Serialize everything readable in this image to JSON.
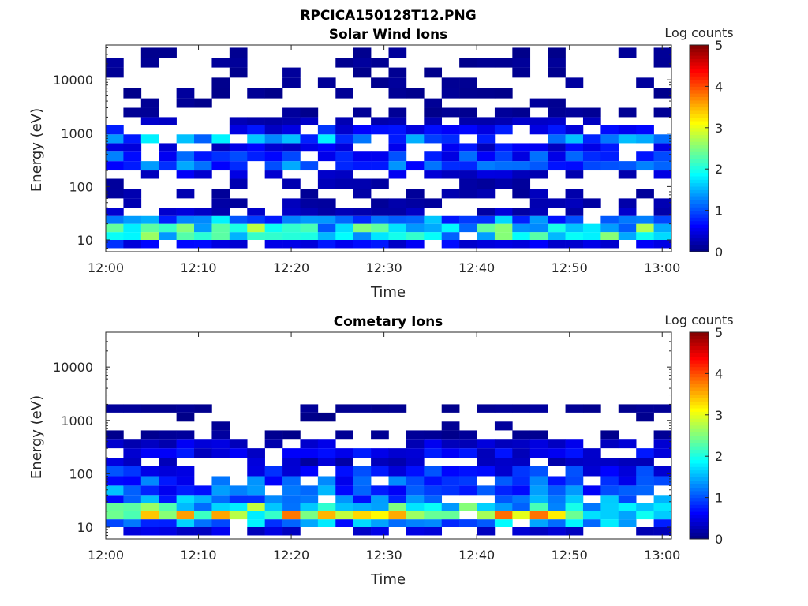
{
  "figure_title": "RPCICA150128T12.PNG",
  "colors": {
    "colormap": [
      "#00007f",
      "#0000ff",
      "#007fff",
      "#00ffff",
      "#7fff7f",
      "#ffff00",
      "#ff7f00",
      "#ff0000",
      "#7f0000"
    ],
    "axis": "#262626",
    "background": "#ffffff"
  },
  "chart_data": [
    {
      "type": "heatmap",
      "title": "Solar Wind Ions",
      "xlabel": "Time",
      "ylabel": "Energy (eV)",
      "x_ticks": [
        "12:00",
        "12:10",
        "12:20",
        "12:30",
        "12:40",
        "12:50",
        "13:00"
      ],
      "x_range_minutes": [
        0,
        61
      ],
      "y_scale": "log",
      "y_range": [
        6,
        45000
      ],
      "y_ticks": [
        {
          "value": 10,
          "label": "10"
        },
        {
          "value": 100,
          "label": "100"
        },
        {
          "value": 1000,
          "label": "1000"
        },
        {
          "value": 10000,
          "label": "10000"
        }
      ],
      "colorbar": {
        "label": "Log counts",
        "range": [
          0,
          5
        ],
        "ticks": [
          "0",
          "1",
          "2",
          "3",
          "4",
          "5"
        ]
      },
      "time_columns": 32,
      "energy_bands": [
        {
          "e_low": 7,
          "e_high": 10,
          "value": 0.6,
          "coverage": 0.8
        },
        {
          "e_low": 10,
          "e_high": 14,
          "value": 1.7,
          "coverage": 0.95
        },
        {
          "e_low": 14,
          "e_high": 20,
          "value": 1.9,
          "coverage": 0.95
        },
        {
          "e_low": 20,
          "e_high": 28,
          "value": 1.2,
          "coverage": 0.95
        },
        {
          "e_low": 28,
          "e_high": 40,
          "value": 0.3,
          "coverage": 0.55
        },
        {
          "e_low": 40,
          "e_high": 60,
          "value": 0.2,
          "coverage": 0.4
        },
        {
          "e_low": 60,
          "e_high": 90,
          "value": 0.2,
          "coverage": 0.3
        },
        {
          "e_low": 90,
          "e_high": 140,
          "value": 0.2,
          "coverage": 0.4
        },
        {
          "e_low": 140,
          "e_high": 200,
          "value": 0.4,
          "coverage": 0.6
        },
        {
          "e_low": 200,
          "e_high": 300,
          "value": 1.0,
          "coverage": 0.9
        },
        {
          "e_low": 300,
          "e_high": 450,
          "value": 0.8,
          "coverage": 0.8
        },
        {
          "e_low": 450,
          "e_high": 650,
          "value": 0.5,
          "coverage": 0.6
        },
        {
          "e_low": 650,
          "e_high": 950,
          "value": 1.3,
          "coverage": 0.75
        },
        {
          "e_low": 950,
          "e_high": 1400,
          "value": 0.6,
          "coverage": 0.7
        },
        {
          "e_low": 1400,
          "e_high": 2000,
          "value": 0.3,
          "coverage": 0.75
        },
        {
          "e_low": 2000,
          "e_high": 3000,
          "value": 0.1,
          "coverage": 0.45
        },
        {
          "e_low": 3000,
          "e_high": 4500,
          "value": 0.1,
          "coverage": 0.3
        },
        {
          "e_low": 4500,
          "e_high": 7000,
          "value": 0.1,
          "coverage": 0.35
        },
        {
          "e_low": 7000,
          "e_high": 11000,
          "value": 0.1,
          "coverage": 0.3
        },
        {
          "e_low": 11000,
          "e_high": 17000,
          "value": 0.1,
          "coverage": 0.25
        },
        {
          "e_low": 17000,
          "e_high": 26000,
          "value": 0.1,
          "coverage": 0.3
        },
        {
          "e_low": 26000,
          "e_high": 40000,
          "value": 0.1,
          "coverage": 0.3
        }
      ]
    },
    {
      "type": "heatmap",
      "title": "Cometary Ions",
      "xlabel": "Time",
      "ylabel": "Energy (eV)",
      "x_ticks": [
        "12:00",
        "12:10",
        "12:20",
        "12:30",
        "12:40",
        "12:50",
        "13:00"
      ],
      "x_range_minutes": [
        0,
        61
      ],
      "y_scale": "log",
      "y_range": [
        6,
        45000
      ],
      "y_ticks": [
        {
          "value": 10,
          "label": "10"
        },
        {
          "value": 100,
          "label": "100"
        },
        {
          "value": 1000,
          "label": "1000"
        },
        {
          "value": 10000,
          "label": "10000"
        }
      ],
      "colorbar": {
        "label": "Log counts",
        "range": [
          0,
          5
        ],
        "ticks": [
          "0",
          "1",
          "2",
          "3",
          "4",
          "5"
        ]
      },
      "time_columns": 32,
      "energy_bands": [
        {
          "e_low": 7,
          "e_high": 10,
          "value": 0.4,
          "coverage": 0.7
        },
        {
          "e_low": 10,
          "e_high": 14,
          "value": 1.2,
          "coverage": 0.9
        },
        {
          "e_low": 14,
          "e_high": 20,
          "value": 2.6,
          "coverage": 0.95
        },
        {
          "e_low": 20,
          "e_high": 28,
          "value": 2.0,
          "coverage": 0.95
        },
        {
          "e_low": 28,
          "e_high": 40,
          "value": 1.2,
          "coverage": 0.95
        },
        {
          "e_low": 40,
          "e_high": 60,
          "value": 1.0,
          "coverage": 0.95
        },
        {
          "e_low": 60,
          "e_high": 90,
          "value": 0.9,
          "coverage": 0.9
        },
        {
          "e_low": 90,
          "e_high": 140,
          "value": 0.7,
          "coverage": 0.85
        },
        {
          "e_low": 140,
          "e_high": 200,
          "value": 0.3,
          "coverage": 0.6
        },
        {
          "e_low": 200,
          "e_high": 300,
          "value": 0.5,
          "coverage": 0.9
        },
        {
          "e_low": 300,
          "e_high": 450,
          "value": 0.4,
          "coverage": 0.85
        },
        {
          "e_low": 450,
          "e_high": 650,
          "value": 0.1,
          "coverage": 0.45
        },
        {
          "e_low": 650,
          "e_high": 950,
          "value": 0.1,
          "coverage": 0.1
        },
        {
          "e_low": 950,
          "e_high": 1400,
          "value": 0.05,
          "coverage": 0.05
        },
        {
          "e_low": 1400,
          "e_high": 2000,
          "value": 0.1,
          "coverage": 0.55
        }
      ]
    }
  ]
}
